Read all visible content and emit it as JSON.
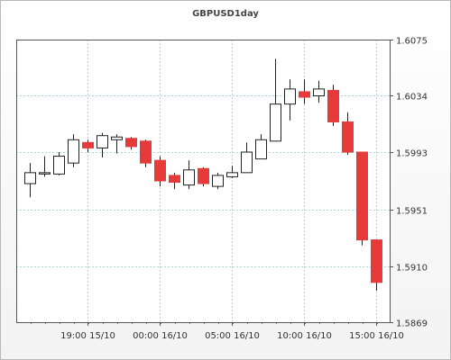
{
  "chart_data": {
    "type": "candlestick",
    "title": "GBPUSD1day",
    "xlabel": "",
    "ylabel": "",
    "ylim": [
      1.5869,
      1.6075
    ],
    "y_ticks": [
      "1.6075",
      "1.6034",
      "1.5993",
      "1.5951",
      "1.5910",
      "1.5869"
    ],
    "x_ticks": [
      "19:00 15/10",
      "00:00 16/10",
      "05:00 16/10",
      "10:00 16/10",
      "15:00 16/10"
    ],
    "grid": true,
    "colors": {
      "up_fill": "#ffffff",
      "down_fill": "#e53b3b",
      "wick": "#222222",
      "grid": "#a8d8d8"
    },
    "candles": [
      {
        "open": 1.597,
        "close": 1.5978,
        "high": 1.5985,
        "low": 1.596
      },
      {
        "open": 1.5978,
        "close": 1.5978,
        "high": 1.599,
        "low": 1.5975
      },
      {
        "open": 1.5977,
        "close": 1.599,
        "high": 1.5993,
        "low": 1.5976
      },
      {
        "open": 1.5985,
        "close": 1.6002,
        "high": 1.6006,
        "low": 1.5982
      },
      {
        "open": 1.6,
        "close": 1.5996,
        "high": 1.6002,
        "low": 1.5993
      },
      {
        "open": 1.5996,
        "close": 1.6005,
        "high": 1.6007,
        "low": 1.5989
      },
      {
        "open": 1.6002,
        "close": 1.6004,
        "high": 1.6006,
        "low": 1.5992
      },
      {
        "open": 1.6003,
        "close": 1.5997,
        "high": 1.6004,
        "low": 1.5995
      },
      {
        "open": 1.6001,
        "close": 1.5985,
        "high": 1.6002,
        "low": 1.5982
      },
      {
        "open": 1.5987,
        "close": 1.5972,
        "high": 1.599,
        "low": 1.5968
      },
      {
        "open": 1.5976,
        "close": 1.5971,
        "high": 1.5978,
        "low": 1.5966
      },
      {
        "open": 1.5969,
        "close": 1.598,
        "high": 1.5987,
        "low": 1.5966
      },
      {
        "open": 1.5981,
        "close": 1.597,
        "high": 1.5982,
        "low": 1.5968
      },
      {
        "open": 1.5968,
        "close": 1.5976,
        "high": 1.5978,
        "low": 1.5966
      },
      {
        "open": 1.5975,
        "close": 1.5978,
        "high": 1.5983,
        "low": 1.5974
      },
      {
        "open": 1.5978,
        "close": 1.5993,
        "high": 1.6,
        "low": 1.5978
      },
      {
        "open": 1.5988,
        "close": 1.6002,
        "high": 1.6006,
        "low": 1.5988
      },
      {
        "open": 1.6001,
        "close": 1.6028,
        "high": 1.6061,
        "low": 1.6001
      },
      {
        "open": 1.6028,
        "close": 1.6039,
        "high": 1.6046,
        "low": 1.6016
      },
      {
        "open": 1.6037,
        "close": 1.6033,
        "high": 1.6046,
        "low": 1.6028
      },
      {
        "open": 1.6034,
        "close": 1.6039,
        "high": 1.6045,
        "low": 1.6029
      },
      {
        "open": 1.6038,
        "close": 1.6015,
        "high": 1.6042,
        "low": 1.6012
      },
      {
        "open": 1.6015,
        "close": 1.5993,
        "high": 1.6022,
        "low": 1.5991
      },
      {
        "open": 1.5993,
        "close": 1.5929,
        "high": 1.5993,
        "low": 1.5925
      },
      {
        "open": 1.5929,
        "close": 1.5898,
        "high": 1.5929,
        "low": 1.5892
      }
    ]
  }
}
